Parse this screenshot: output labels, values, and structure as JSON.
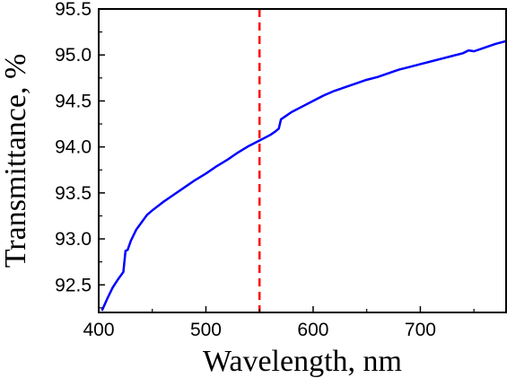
{
  "chart_data": {
    "type": "line",
    "title": "",
    "xlabel": "Wavelength, nm",
    "ylabel": "Transmittance, %",
    "xlim": [
      400,
      780
    ],
    "ylim": [
      92.2,
      95.5
    ],
    "xticks": [
      400,
      500,
      600,
      700
    ],
    "yticks": [
      92.5,
      93.0,
      93.5,
      94.0,
      94.5,
      95.0,
      95.5
    ],
    "ytick_labels": [
      "92.5",
      "93.0",
      "93.5",
      "94.0",
      "94.5",
      "95.0",
      "95.5"
    ],
    "grid": false,
    "legend": "none",
    "reference_line": {
      "x": 550,
      "style": "dashed",
      "color": "#ff0000"
    },
    "series": [
      {
        "color": "#0000ff",
        "x": [
          403,
          408,
          413,
          418,
          423,
          425,
          427,
          430,
          435,
          440,
          445,
          450,
          460,
          470,
          480,
          490,
          500,
          510,
          520,
          530,
          540,
          550,
          560,
          565,
          568,
          570,
          575,
          580,
          590,
          600,
          610,
          620,
          630,
          640,
          650,
          660,
          670,
          680,
          690,
          700,
          710,
          720,
          730,
          740,
          745,
          750,
          760,
          770,
          780
        ],
        "y": [
          92.22,
          92.35,
          92.47,
          92.56,
          92.64,
          92.87,
          92.88,
          92.98,
          93.1,
          93.18,
          93.26,
          93.31,
          93.4,
          93.48,
          93.56,
          93.64,
          93.71,
          93.79,
          93.86,
          93.94,
          94.01,
          94.07,
          94.13,
          94.17,
          94.2,
          94.3,
          94.34,
          94.38,
          94.44,
          94.5,
          94.56,
          94.61,
          94.65,
          94.69,
          94.73,
          94.76,
          94.8,
          94.84,
          94.87,
          94.9,
          94.93,
          94.96,
          94.99,
          95.02,
          95.05,
          95.04,
          95.08,
          95.12,
          95.15
        ]
      }
    ]
  }
}
